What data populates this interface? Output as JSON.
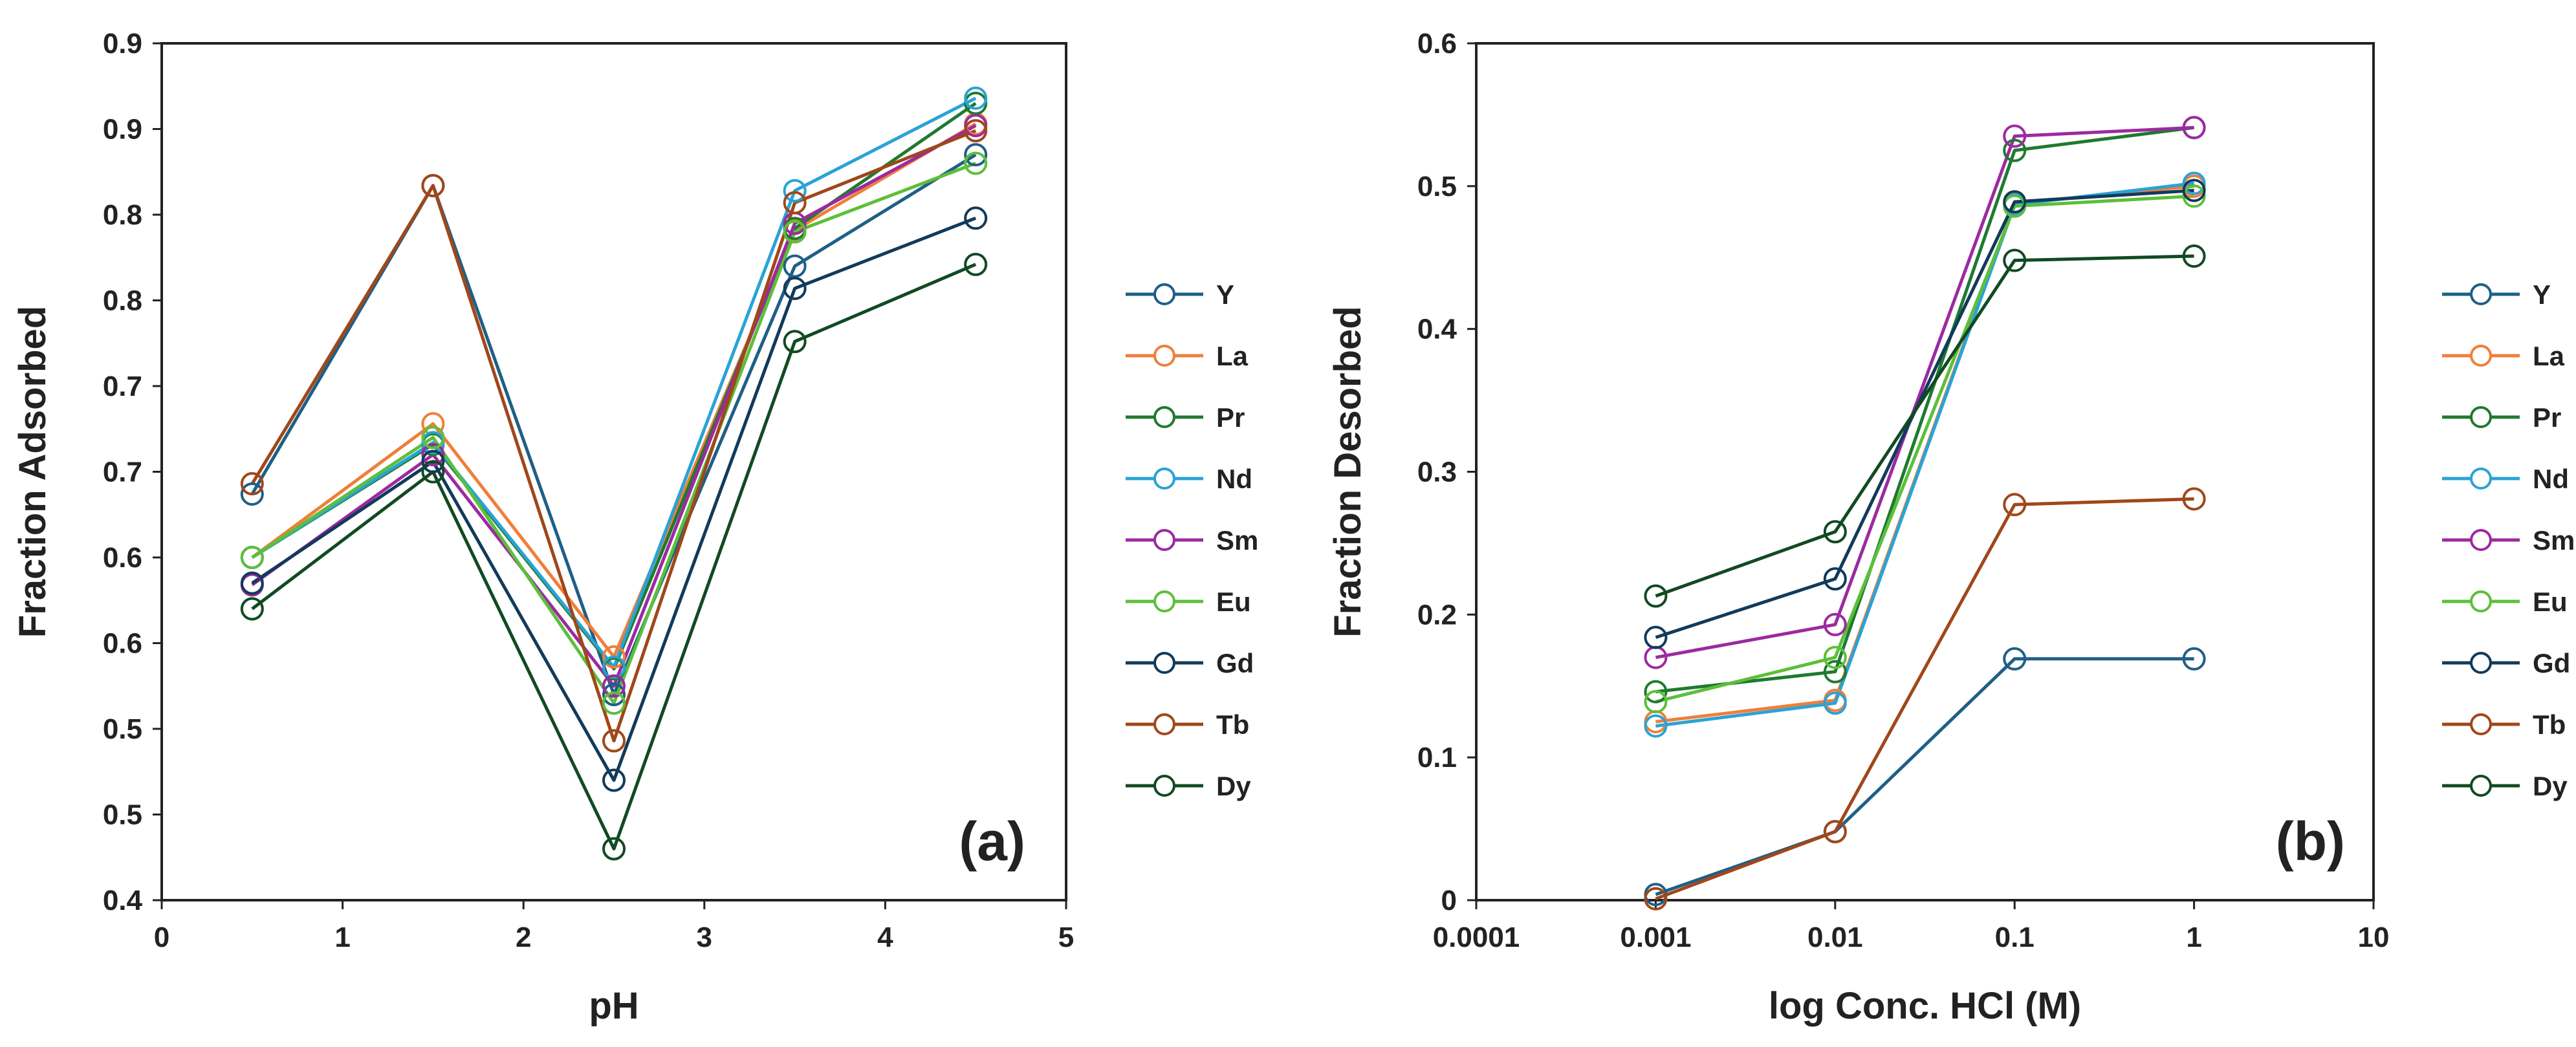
{
  "chart_data": [
    {
      "type": "line",
      "panel_label": "(a)",
      "xlabel": "pH",
      "ylabel": "Fraction Adsorbed",
      "xlim": [
        0,
        5
      ],
      "ylim": [
        0.4,
        0.9
      ],
      "x_ticks": [
        "0",
        "1",
        "2",
        "3",
        "4",
        "5"
      ],
      "y_ticks": [
        "0.4",
        "0.5",
        "0.5",
        "0.6",
        "0.6",
        "0.7",
        "0.7",
        "0.8",
        "0.8",
        "0.9",
        "0.9"
      ],
      "x": [
        0.5,
        1.5,
        2.5,
        3.5,
        4.5
      ],
      "grid": false,
      "legend_position": "right",
      "markers": "open-circle",
      "series": [
        {
          "name": "Y",
          "color": "#1f5f86",
          "values": [
            0.637,
            0.817,
            0.52,
            0.77,
            0.835
          ]
        },
        {
          "name": "La",
          "color": "#ef7f3a",
          "values": [
            0.6,
            0.678,
            0.542,
            0.791,
            0.853
          ]
        },
        {
          "name": "Pr",
          "color": "#1f7a2f",
          "values": [
            0.6,
            0.666,
            0.535,
            0.792,
            0.865
          ]
        },
        {
          "name": "Nd",
          "color": "#29a3d6",
          "values": [
            0.6,
            0.667,
            0.536,
            0.814,
            0.868
          ]
        },
        {
          "name": "Sm",
          "color": "#9c2aa0",
          "values": [
            0.584,
            0.66,
            0.525,
            0.795,
            0.852
          ]
        },
        {
          "name": "Eu",
          "color": "#5cbf3a",
          "values": [
            0.6,
            0.67,
            0.515,
            0.79,
            0.83
          ]
        },
        {
          "name": "Gd",
          "color": "#123a5a",
          "values": [
            0.585,
            0.656,
            0.47,
            0.757,
            0.798
          ]
        },
        {
          "name": "Tb",
          "color": "#a0471a",
          "values": [
            0.643,
            0.817,
            0.493,
            0.807,
            0.849
          ]
        },
        {
          "name": "Dy",
          "color": "#114a22",
          "values": [
            0.57,
            0.65,
            0.43,
            0.726,
            0.771
          ]
        }
      ]
    },
    {
      "type": "line",
      "panel_label": "(b)",
      "xlabel": "log Conc. HCl (M)",
      "ylabel": "Fraction Desorbed",
      "x_scale": "log",
      "xlim": [
        0.0001,
        10
      ],
      "ylim": [
        0,
        0.6
      ],
      "x_ticks": [
        "0.0001",
        "0.001",
        "0.01",
        "0.1",
        "1",
        "10"
      ],
      "y_ticks": [
        "0",
        "0.1",
        "0.2",
        "0.3",
        "0.4",
        "0.5",
        "0.6"
      ],
      "x": [
        0.001,
        0.01,
        0.1,
        1
      ],
      "grid": false,
      "legend_position": "right",
      "markers": "open-circle",
      "series": [
        {
          "name": "Y",
          "color": "#1f5f86",
          "values": [
            0.004,
            0.048,
            0.169,
            0.169
          ]
        },
        {
          "name": "La",
          "color": "#ef7f3a",
          "values": [
            0.125,
            0.14,
            0.488,
            0.5
          ]
        },
        {
          "name": "Pr",
          "color": "#1f7a2f",
          "values": [
            0.146,
            0.16,
            0.525,
            0.541
          ]
        },
        {
          "name": "Nd",
          "color": "#29a3d6",
          "values": [
            0.122,
            0.138,
            0.487,
            0.502
          ]
        },
        {
          "name": "Sm",
          "color": "#9c2aa0",
          "values": [
            0.17,
            0.193,
            0.535,
            0.541
          ]
        },
        {
          "name": "Eu",
          "color": "#5cbf3a",
          "values": [
            0.139,
            0.17,
            0.486,
            0.493
          ]
        },
        {
          "name": "Gd",
          "color": "#123a5a",
          "values": [
            0.184,
            0.225,
            0.489,
            0.497
          ]
        },
        {
          "name": "Tb",
          "color": "#a0471a",
          "values": [
            0.001,
            0.048,
            0.277,
            0.281
          ]
        },
        {
          "name": "Dy",
          "color": "#114a22",
          "values": [
            0.213,
            0.258,
            0.448,
            0.451
          ]
        }
      ]
    }
  ]
}
